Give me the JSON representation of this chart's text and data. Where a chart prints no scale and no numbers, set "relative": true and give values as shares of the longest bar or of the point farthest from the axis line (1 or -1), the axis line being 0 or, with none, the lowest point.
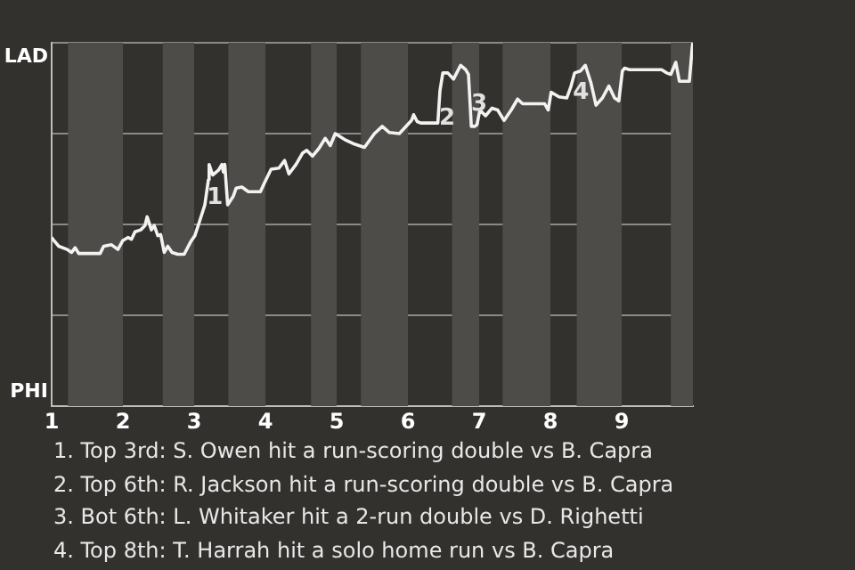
{
  "chart_data": {
    "type": "line",
    "relative": true,
    "xlim": [
      1,
      10
    ],
    "xticks": [
      1,
      2,
      3,
      4,
      5,
      6,
      7,
      8,
      9
    ],
    "grid": "y",
    "legend": false,
    "marker": "none",
    "line_style": "solid",
    "bands": [
      {
        "axis": "x",
        "from": 1.23,
        "to": 2,
        "color": "#4e4c49"
      },
      {
        "axis": "x",
        "from": 2.56,
        "to": 3,
        "color": "#4e4c49"
      },
      {
        "axis": "x",
        "from": 3.48,
        "to": 4,
        "color": "#4e4c49"
      },
      {
        "axis": "x",
        "from": 4.64,
        "to": 5,
        "color": "#4e4c49"
      },
      {
        "axis": "x",
        "from": 5.34,
        "to": 6,
        "color": "#4e4c49"
      },
      {
        "axis": "x",
        "from": 6.62,
        "to": 7,
        "color": "#4e4c49"
      },
      {
        "axis": "x",
        "from": 7.33,
        "to": 8,
        "color": "#4e4c49"
      },
      {
        "axis": "x",
        "from": 8.37,
        "to": 9,
        "color": "#4e4c49"
      },
      {
        "axis": "x",
        "from": 9.69,
        "to": 10,
        "color": "#4e4c49"
      }
    ],
    "series": [
      {
        "color": "#f2f2f2",
        "x": [
          1,
          1.03,
          1.1,
          1.22,
          1.28,
          1.33,
          1.38,
          1.68,
          1.73,
          1.84,
          1.93,
          2,
          2.07,
          2.12,
          2.17,
          2.25,
          2.31,
          2.34,
          2.4,
          2.44,
          2.49,
          2.53,
          2.58,
          2.63,
          2.69,
          2.77,
          2.86,
          2.95,
          3.01,
          3.07,
          3.15,
          3.2,
          3.21,
          3.26,
          3.34,
          3.39,
          3.41,
          3.43,
          3.47,
          3.55,
          3.59,
          3.67,
          3.76,
          3.93,
          3.99,
          4.08,
          4.19,
          4.27,
          4.33,
          4.43,
          4.52,
          4.58,
          4.66,
          4.75,
          4.84,
          4.91,
          4.98,
          5.11,
          5.25,
          5.39,
          5.53,
          5.64,
          5.74,
          5.88,
          6.05,
          6.08,
          6.13,
          6.18,
          6.42,
          6.45,
          6.49,
          6.56,
          6.64,
          6.74,
          6.81,
          6.85,
          6.89,
          6.94,
          6.97,
          7.01,
          7.09,
          7.18,
          7.26,
          7.35,
          7.45,
          7.54,
          7.61,
          7.92,
          7.97,
          8.01,
          8.12,
          8.23,
          8.29,
          8.34,
          8.42,
          8.49,
          8.57,
          8.64,
          8.73,
          8.82,
          8.9,
          8.96,
          9.01,
          9.04,
          9.11,
          9.56,
          9.63,
          9.69,
          9.76,
          9.81,
          9.95,
          9.99,
          10
        ],
        "values": [
          0.464,
          0.456,
          0.44,
          0.431,
          0.423,
          0.436,
          0.42,
          0.42,
          0.44,
          0.444,
          0.431,
          0.456,
          0.464,
          0.459,
          0.48,
          0.485,
          0.497,
          0.521,
          0.485,
          0.497,
          0.469,
          0.472,
          0.423,
          0.44,
          0.423,
          0.418,
          0.418,
          0.452,
          0.469,
          0.505,
          0.554,
          0.623,
          0.665,
          0.636,
          0.649,
          0.665,
          0.644,
          0.665,
          0.554,
          0.578,
          0.6,
          0.603,
          0.59,
          0.59,
          0.616,
          0.652,
          0.655,
          0.676,
          0.639,
          0.665,
          0.696,
          0.704,
          0.688,
          0.709,
          0.737,
          0.717,
          0.75,
          0.734,
          0.721,
          0.712,
          0.75,
          0.77,
          0.753,
          0.75,
          0.786,
          0.802,
          0.783,
          0.779,
          0.779,
          0.868,
          0.917,
          0.917,
          0.9,
          0.938,
          0.926,
          0.913,
          0.77,
          0.77,
          0.775,
          0.815,
          0.799,
          0.82,
          0.815,
          0.786,
          0.815,
          0.845,
          0.832,
          0.832,
          0.815,
          0.864,
          0.851,
          0.848,
          0.881,
          0.917,
          0.922,
          0.938,
          0.889,
          0.828,
          0.848,
          0.881,
          0.848,
          0.84,
          0.922,
          0.93,
          0.926,
          0.926,
          0.917,
          0.913,
          0.946,
          0.894,
          0.894,
          0.987,
          1
        ]
      }
    ],
    "annotations": [
      "LAD",
      "PHI",
      {
        "text": "1",
        "x": 3.29,
        "y": 0.574
      },
      {
        "text": "2",
        "x": 6.55,
        "y": 0.791
      },
      {
        "text": "3",
        "x": 7.0,
        "y": 0.83
      },
      {
        "text": "4",
        "x": 8.43,
        "y": 0.863
      },
      "1. Top 3rd: S. Owen hit a run-scoring double vs B. Capra",
      "2. Top 6th: R. Jackson hit a run-scoring double vs B. Capra",
      "3. Bot 6th: L. Whitaker hit a 2-run double vs D. Righetti",
      "4. Top 8th: T. Harrah hit a solo home run vs B. Capra"
    ]
  }
}
